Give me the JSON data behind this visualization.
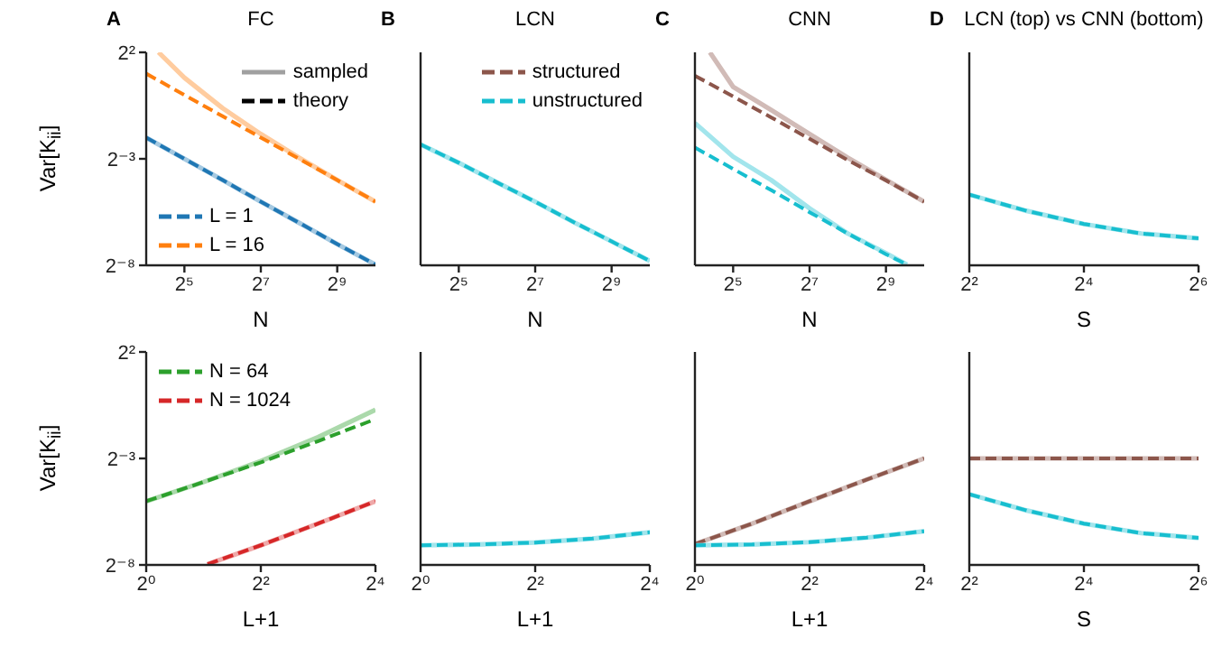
{
  "chart_data": [
    {
      "type": "line",
      "title": "FC",
      "annotations": [
        "A"
      ],
      "xlabel": "N",
      "ylabel": "Var[K$_{ii}$]",
      "log": "xy",
      "marker": "none",
      "legend": "top right",
      "xlim": [
        16,
        1024
      ],
      "xticks": [
        {
          "value": 32,
          "label": "2⁵"
        },
        {
          "value": 128,
          "label": "2⁷"
        },
        {
          "value": 512,
          "label": "2⁹"
        }
      ],
      "ylim": [
        0.00390625,
        4
      ],
      "yticks": [
        {
          "value": 0.00390625,
          "label": "2⁻⁸"
        },
        {
          "value": 0.125,
          "label": "2⁻³"
        },
        {
          "value": 4,
          "label": "2²"
        }
      ],
      "x": [
        16,
        32,
        64,
        128,
        256,
        512,
        1024
      ],
      "series": [
        {
          "color": "#a5c9e1",
          "values": [
            0.25,
            0.125,
            0.0625,
            0.031,
            0.0156,
            0.0078,
            0.004
          ]
        },
        {
          "name": "L = 1",
          "color": "#1f77b4",
          "line_style": "dashed",
          "values": [
            0.25,
            0.125,
            0.0625,
            0.031,
            0.0156,
            0.0078,
            0.004
          ]
        },
        {
          "color": "#ffcc9f",
          "x": [
            20,
            32,
            64,
            128,
            256,
            512,
            1024
          ],
          "values": [
            4,
            1.75,
            0.65,
            0.28,
            0.13,
            0.0625,
            0.031
          ]
        },
        {
          "name": "L = 16",
          "color": "#ff7f0e",
          "line_style": "dashed",
          "values": [
            2,
            1,
            0.5,
            0.25,
            0.125,
            0.0625,
            0.031
          ]
        },
        {
          "name": "sampled",
          "color": "#a0a0a0",
          "values": [
            null,
            null,
            null,
            null,
            null,
            null,
            null
          ]
        },
        {
          "name": "theory",
          "color": "#000000",
          "line_style": "dashed",
          "values": [
            null,
            null,
            null,
            null,
            null,
            null,
            null
          ]
        }
      ]
    },
    {
      "type": "line",
      "title": "LCN",
      "annotations": [
        "B"
      ],
      "xlabel": "N",
      "log": "xy",
      "marker": "none",
      "legend": "top right",
      "tick_labels": "x",
      "xlim": [
        16,
        1024
      ],
      "xticks": [
        {
          "value": 32,
          "label": "2⁵"
        },
        {
          "value": 128,
          "label": "2⁷"
        },
        {
          "value": 512,
          "label": "2⁹"
        }
      ],
      "ylim": [
        0.00390625,
        4
      ],
      "yticks": [
        {
          "value": 0.00390625,
          "label": null
        },
        {
          "value": 0.125,
          "label": null
        },
        {
          "value": 4,
          "label": null
        }
      ],
      "x": [
        16,
        32,
        64,
        128,
        256,
        512,
        1024
      ],
      "series": [
        {
          "name": "structured",
          "color": "#8c564b",
          "line_style": "dashed",
          "values": [
            null,
            null,
            null,
            null,
            null,
            null,
            null
          ]
        },
        {
          "color": "#a2e5ec",
          "values": [
            0.2,
            0.11,
            0.058,
            0.031,
            0.016,
            0.0085,
            0.0045
          ]
        },
        {
          "name": "unstructured",
          "color": "#17becf",
          "line_style": "dashed",
          "values": [
            0.2,
            0.11,
            0.058,
            0.031,
            0.016,
            0.0085,
            0.0045
          ]
        }
      ]
    },
    {
      "type": "line",
      "title": "CNN",
      "annotations": [
        "C"
      ],
      "xlabel": "N",
      "log": "xy",
      "marker": "none",
      "tick_labels": "x",
      "xlim": [
        16,
        1024
      ],
      "xticks": [
        {
          "value": 32,
          "label": "2⁵"
        },
        {
          "value": 128,
          "label": "2⁷"
        },
        {
          "value": 512,
          "label": "2⁹"
        }
      ],
      "ylim": [
        0.00390625,
        4
      ],
      "yticks": [
        {
          "value": 0.00390625,
          "label": null
        },
        {
          "value": 0.125,
          "label": null
        },
        {
          "value": 4,
          "label": null
        }
      ],
      "x": [
        16,
        32,
        64,
        128,
        256,
        512,
        1024
      ],
      "series": [
        {
          "color": "#d1bbb7",
          "x": [
            21,
            32,
            64,
            128,
            256,
            512,
            1024
          ],
          "values": [
            4,
            1.3,
            0.61,
            0.28,
            0.13,
            0.063,
            0.031
          ]
        },
        {
          "color": "#8c564b",
          "line_style": "dashed",
          "values": [
            1.87,
            0.95,
            0.48,
            0.24,
            0.12,
            0.062,
            0.031
          ]
        },
        {
          "color": "#a2e5ec",
          "x": [
            16,
            32,
            64,
            128,
            256,
            512,
            750
          ],
          "values": [
            0.4,
            0.134,
            0.0625,
            0.025,
            0.011,
            0.0058,
            0.004
          ]
        },
        {
          "color": "#17becf",
          "line_style": "dashed",
          "x": [
            16,
            32,
            64,
            128,
            256,
            512,
            750
          ],
          "values": [
            0.18,
            0.09,
            0.045,
            0.022,
            0.011,
            0.0056,
            0.004
          ]
        }
      ]
    },
    {
      "type": "line",
      "title": "LCN (top) vs CNN (bottom)",
      "annotations": [
        "D"
      ],
      "xlabel": "S",
      "log": "xy",
      "marker": "none",
      "tick_labels": "x",
      "xlim": [
        4,
        64
      ],
      "xticks": [
        {
          "value": 4,
          "label": "2²"
        },
        {
          "value": 16,
          "label": "2⁴"
        },
        {
          "value": 64,
          "label": "2⁶"
        }
      ],
      "ylim": [
        0.00390625,
        4
      ],
      "yticks": [
        {
          "value": 0.00390625,
          "label": null
        },
        {
          "value": 0.125,
          "label": null
        },
        {
          "value": 4,
          "label": null
        }
      ],
      "x": [
        4,
        8,
        16,
        32,
        64
      ],
      "series": [
        {
          "color": "#a2e5ec",
          "values": [
            0.039,
            0.023,
            0.015,
            0.011,
            0.0094
          ]
        },
        {
          "color": "#17becf",
          "line_style": "dashed",
          "values": [
            0.039,
            0.023,
            0.015,
            0.011,
            0.0094
          ]
        }
      ]
    },
    {
      "type": "line",
      "xlabel": "L+1",
      "ylabel": "Var[K$_{ii}$]",
      "log": "xy",
      "marker": "none",
      "legend": "top left",
      "xlim": [
        1,
        16
      ],
      "xticks": [
        {
          "value": 1,
          "label": "2⁰"
        },
        {
          "value": 4,
          "label": "2²"
        },
        {
          "value": 16,
          "label": "2⁴"
        }
      ],
      "ylim": [
        0.00390625,
        4
      ],
      "yticks": [
        {
          "value": 0.00390625,
          "label": "2⁻⁸"
        },
        {
          "value": 0.125,
          "label": "2⁻³"
        },
        {
          "value": 4,
          "label": "2²"
        }
      ],
      "x": [
        1,
        2,
        4,
        8,
        16
      ],
      "series": [
        {
          "color": "#abd9ab",
          "values": [
            0.031,
            0.058,
            0.115,
            0.25,
            0.61
          ]
        },
        {
          "name": "N = 64",
          "color": "#2ca02c",
          "line_style": "dashed",
          "values": [
            0.031,
            0.058,
            0.11,
            0.22,
            0.45
          ]
        },
        {
          "color": "#efa9a9",
          "x": [
            2.1,
            4,
            8,
            16
          ],
          "values": [
            0.004,
            0.0074,
            0.015,
            0.031
          ]
        },
        {
          "name": "N = 1024",
          "color": "#d62728",
          "line_style": "dashed",
          "x": [
            2.1,
            4,
            8,
            16
          ],
          "values": [
            0.004,
            0.0074,
            0.015,
            0.031
          ]
        }
      ]
    },
    {
      "type": "line",
      "xlabel": "L+1",
      "log": "xy",
      "marker": "none",
      "tick_labels": "x",
      "xlim": [
        1,
        16
      ],
      "xticks": [
        {
          "value": 1,
          "label": "2⁰"
        },
        {
          "value": 4,
          "label": "2²"
        },
        {
          "value": 16,
          "label": "2⁴"
        }
      ],
      "ylim": [
        0.00390625,
        4
      ],
      "yticks": [
        {
          "value": 0.00390625,
          "label": null
        },
        {
          "value": 0.125,
          "label": null
        },
        {
          "value": 4,
          "label": null
        }
      ],
      "x": [
        1,
        2,
        4,
        8,
        16
      ],
      "series": [
        {
          "color": "#a2e5ec",
          "values": [
            0.0074,
            0.0076,
            0.0081,
            0.0092,
            0.0113
          ]
        },
        {
          "color": "#17becf",
          "line_style": "dashed",
          "values": [
            0.0074,
            0.0076,
            0.0081,
            0.0092,
            0.0113
          ]
        }
      ]
    },
    {
      "type": "line",
      "xlabel": "L+1",
      "log": "xy",
      "marker": "none",
      "tick_labels": "x",
      "xlim": [
        1,
        16
      ],
      "xticks": [
        {
          "value": 1,
          "label": "2⁰"
        },
        {
          "value": 4,
          "label": "2²"
        },
        {
          "value": 16,
          "label": "2⁴"
        }
      ],
      "ylim": [
        0.00390625,
        4
      ],
      "yticks": [
        {
          "value": 0.00390625,
          "label": null
        },
        {
          "value": 0.125,
          "label": null
        },
        {
          "value": 4,
          "label": null
        }
      ],
      "x": [
        1,
        2,
        4,
        8,
        16
      ],
      "series": [
        {
          "color": "#d1bbb7",
          "values": [
            0.0077,
            0.015,
            0.031,
            0.063,
            0.125
          ]
        },
        {
          "color": "#8c564b",
          "line_style": "dashed",
          "values": [
            0.0077,
            0.015,
            0.031,
            0.063,
            0.125
          ]
        },
        {
          "color": "#a2e5ec",
          "values": [
            0.0074,
            0.0076,
            0.0082,
            0.0095,
            0.0117
          ]
        },
        {
          "color": "#17becf",
          "line_style": "dashed",
          "values": [
            0.0074,
            0.0076,
            0.0082,
            0.0095,
            0.0117
          ]
        }
      ]
    },
    {
      "type": "line",
      "xlabel": "S",
      "log": "xy",
      "marker": "none",
      "tick_labels": "x",
      "xlim": [
        4,
        64
      ],
      "xticks": [
        {
          "value": 4,
          "label": "2²"
        },
        {
          "value": 16,
          "label": "2⁴"
        },
        {
          "value": 64,
          "label": "2⁶"
        }
      ],
      "ylim": [
        0.00390625,
        4
      ],
      "yticks": [
        {
          "value": 0.00390625,
          "label": null
        },
        {
          "value": 0.125,
          "label": null
        },
        {
          "value": 4,
          "label": null
        }
      ],
      "x": [
        4,
        8,
        16,
        32,
        64
      ],
      "series": [
        {
          "color": "#d1bbb7",
          "values": [
            0.125,
            0.125,
            0.125,
            0.125,
            0.125
          ]
        },
        {
          "color": "#8c564b",
          "line_style": "dashed",
          "values": [
            0.125,
            0.125,
            0.125,
            0.125,
            0.125
          ]
        },
        {
          "color": "#a2e5ec",
          "values": [
            0.039,
            0.023,
            0.015,
            0.011,
            0.0094
          ]
        },
        {
          "color": "#17becf",
          "line_style": "dashed",
          "values": [
            0.039,
            0.023,
            0.015,
            0.011,
            0.0094
          ]
        }
      ]
    }
  ]
}
